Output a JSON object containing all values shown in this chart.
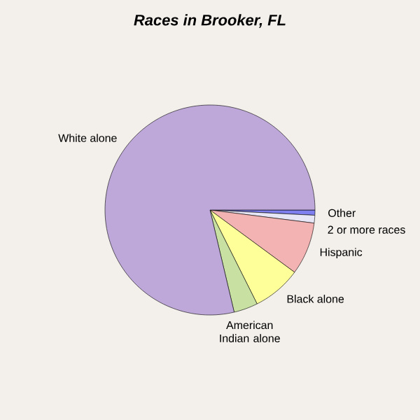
{
  "chart_data": {
    "type": "pie",
    "title": "Races in Brooker, FL",
    "categories": [
      "Other",
      "2 or more races",
      "Hispanic",
      "Black alone",
      "American Indian alone",
      "White alone"
    ],
    "values": [
      0.8,
      1.2,
      8.1,
      7.5,
      3.7,
      78.7
    ],
    "colors": [
      "#7f7fef",
      "#e6e6f6",
      "#f4b3b3",
      "#ffff99",
      "#c9e0a3",
      "#bea8da"
    ]
  }
}
